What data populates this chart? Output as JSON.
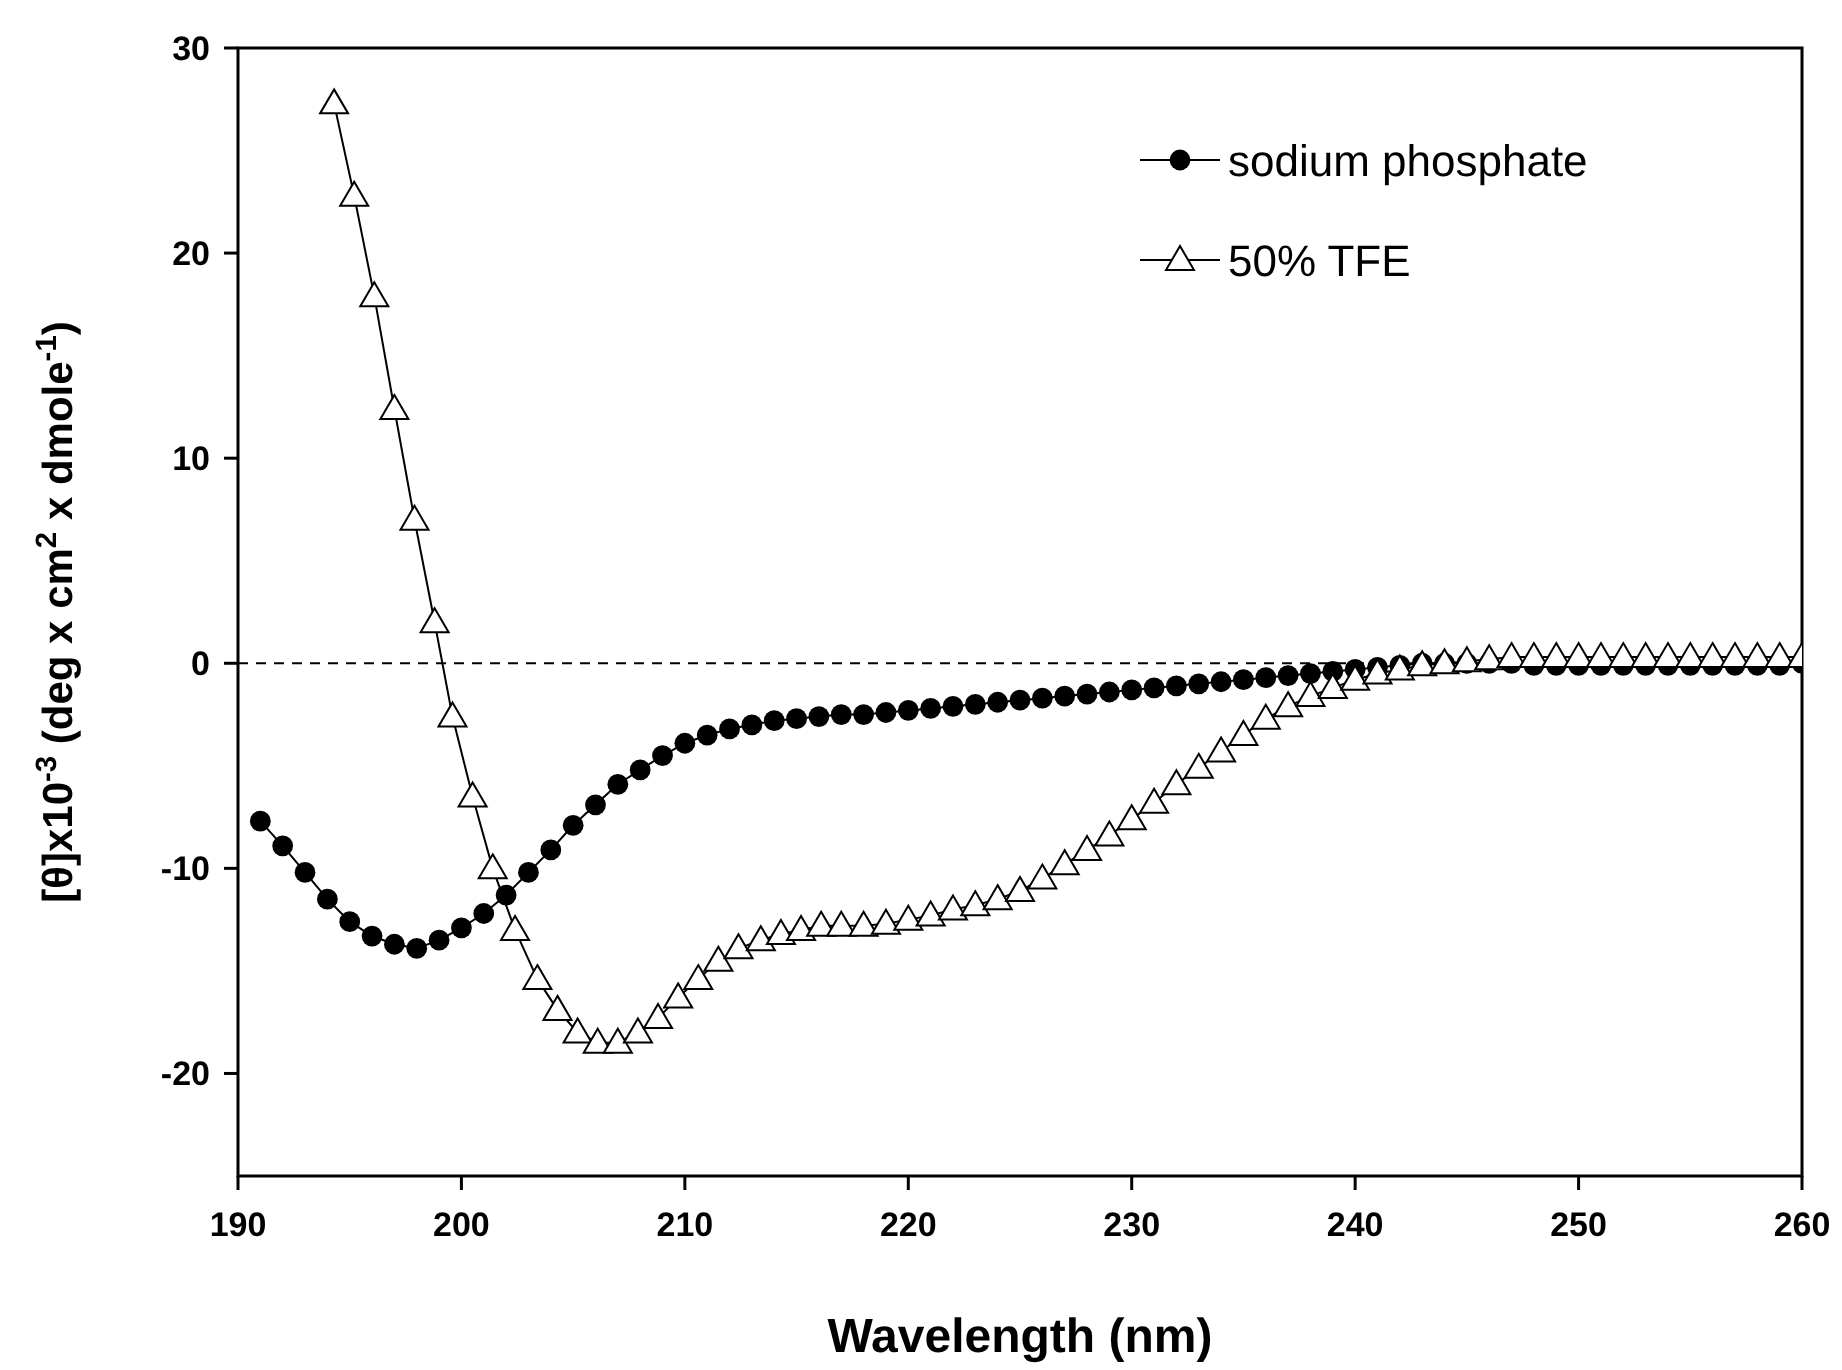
{
  "chart_data": {
    "type": "line",
    "xlabel": "Wavelength (nm)",
    "ylabel": "[θ]x10$^{-3}$ (deg x cm$^{2}$ x dmole$^{-1}$)",
    "xlim": [
      190,
      260
    ],
    "xticks": [
      190,
      200,
      210,
      220,
      230,
      240,
      250,
      260
    ],
    "ylim": [
      -25,
      30
    ],
    "yticks": [
      -20,
      -10,
      0,
      10,
      20,
      30
    ],
    "grid": false,
    "legend": "top right",
    "line_style": "solid",
    "marker": "circle",
    "ref_lines": [
      {
        "axis": "y",
        "value": 0,
        "line_style": "dashed",
        "color": "#000000"
      }
    ],
    "series": [
      {
        "name": "sodium phosphate",
        "color": "#000000",
        "x": [
          191,
          192,
          193,
          194,
          195,
          196,
          197,
          198,
          199,
          200,
          201,
          202,
          203,
          204,
          205,
          206,
          207,
          208,
          209,
          210,
          211,
          212,
          213,
          214,
          215,
          216,
          217,
          218,
          219,
          220,
          221,
          222,
          223,
          224,
          225,
          226,
          227,
          228,
          229,
          230,
          231,
          232,
          233,
          234,
          235,
          236,
          237,
          238,
          239,
          240,
          241,
          242,
          243,
          244,
          245,
          246,
          247,
          248,
          249,
          250,
          251,
          252,
          253,
          254,
          255,
          256,
          257,
          258,
          259,
          260
        ],
        "values": [
          -7.7,
          -8.9,
          -10.2,
          -11.5,
          -12.6,
          -13.3,
          -13.7,
          -13.9,
          -13.5,
          -12.9,
          -12.2,
          -11.3,
          -10.2,
          -9.1,
          -7.9,
          -6.9,
          -5.9,
          -5.2,
          -4.5,
          -3.9,
          -3.5,
          -3.2,
          -3.0,
          -2.8,
          -2.7,
          -2.6,
          -2.5,
          -2.5,
          -2.4,
          -2.3,
          -2.2,
          -2.1,
          -2.0,
          -1.9,
          -1.8,
          -1.7,
          -1.6,
          -1.5,
          -1.4,
          -1.3,
          -1.2,
          -1.1,
          -1.0,
          -0.9,
          -0.8,
          -0.7,
          -0.6,
          -0.5,
          -0.4,
          -0.3,
          -0.2,
          -0.1,
          0,
          0,
          0,
          0,
          0,
          -0.1,
          -0.1,
          -0.1,
          -0.1,
          -0.1,
          -0.1,
          -0.1,
          -0.1,
          -0.1,
          -0.1,
          -0.1,
          -0.1,
          0
        ]
      },
      {
        "name": "50% TFE",
        "color": "#000000",
        "marker": "triangle",
        "x": [
          194.3,
          195.2,
          196.1,
          197.0,
          197.9,
          198.8,
          199.6,
          200.5,
          201.4,
          202.4,
          203.4,
          204.3,
          205.2,
          206.1,
          207.0,
          207.9,
          208.8,
          209.7,
          210.6,
          211.5,
          212.4,
          213.4,
          214.3,
          215.2,
          216.1,
          217,
          218,
          219,
          220,
          221,
          222,
          223,
          224,
          225,
          226,
          227,
          228,
          229,
          230,
          231,
          232,
          233,
          234,
          235,
          236,
          237,
          238,
          239,
          240,
          241,
          242,
          243,
          244,
          245,
          246,
          247,
          248,
          249,
          250,
          251,
          252,
          253,
          254,
          255,
          256,
          257,
          258,
          259,
          260
        ],
        "values": [
          27.3,
          22.8,
          17.9,
          12.4,
          7.0,
          2.0,
          -2.6,
          -6.5,
          -10.0,
          -13.0,
          -15.4,
          -16.9,
          -18.0,
          -18.5,
          -18.5,
          -18.0,
          -17.3,
          -16.3,
          -15.4,
          -14.5,
          -13.9,
          -13.5,
          -13.2,
          -13.0,
          -12.8,
          -12.8,
          -12.8,
          -12.7,
          -12.5,
          -12.3,
          -12.0,
          -11.8,
          -11.5,
          -11.1,
          -10.5,
          -9.8,
          -9.1,
          -8.4,
          -7.6,
          -6.8,
          -5.9,
          -5.1,
          -4.3,
          -3.5,
          -2.7,
          -2.1,
          -1.6,
          -1.2,
          -0.8,
          -0.5,
          -0.3,
          -0.1,
          0,
          0.1,
          0.2,
          0.3,
          0.3,
          0.3,
          0.3,
          0.3,
          0.3,
          0.3,
          0.3,
          0.3,
          0.3,
          0.3,
          0.3,
          0.3,
          0.3
        ]
      }
    ]
  }
}
